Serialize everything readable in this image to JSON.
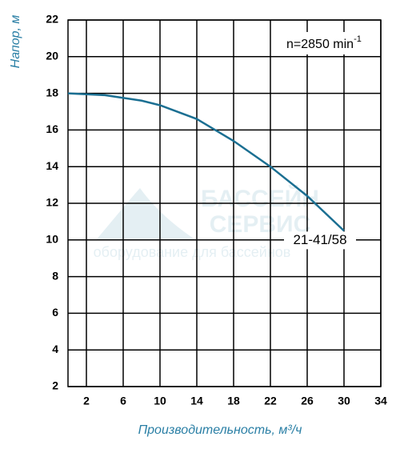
{
  "chart_data": {
    "type": "line",
    "x_label": "Производительность, м³/ч",
    "y_label": "Напор, м",
    "annotation": {
      "text": "n=2850 min",
      "sup": "-1"
    },
    "watermark": [
      "БАССЕЙН",
      "СЕРВИС",
      "оборудование для бассейнов"
    ],
    "x": [
      0,
      4,
      8,
      10,
      14,
      18,
      22,
      26,
      30
    ],
    "series": [
      {
        "name": "21-41/58",
        "color": "#1b6f92",
        "values": [
          18,
          17.9,
          17.6,
          17.35,
          16.6,
          15.4,
          14.0,
          12.4,
          10.5
        ]
      }
    ],
    "xlim": [
      0,
      34
    ],
    "xticks": [
      2,
      6,
      10,
      14,
      18,
      22,
      26,
      30,
      34
    ],
    "ylim": [
      2,
      22
    ],
    "yticks": [
      2,
      4,
      6,
      8,
      10,
      12,
      14,
      16,
      18,
      20,
      22
    ],
    "grid": true
  }
}
